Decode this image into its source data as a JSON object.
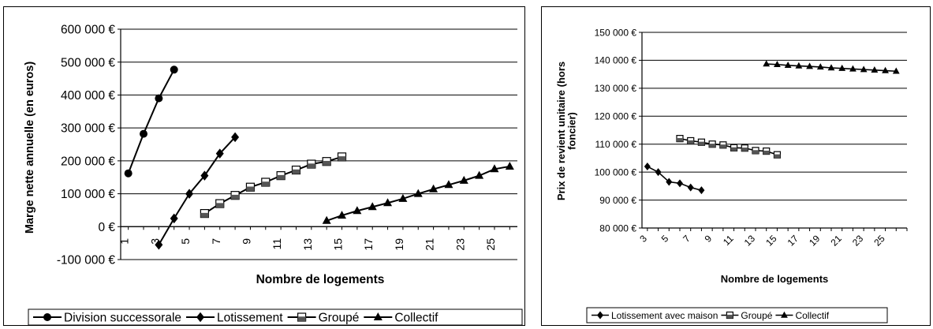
{
  "chart_data": [
    {
      "type": "line",
      "title": "",
      "xlabel": "Nombre de logements",
      "ylabel": "Marge nette annuelle (en euros)",
      "xlim": [
        0.5,
        26.5
      ],
      "ylim": [
        -100000,
        600000
      ],
      "x_ticks": [
        "1",
        "3",
        "5",
        "7",
        "9",
        "11",
        "13",
        "15",
        "17",
        "19",
        "21",
        "23",
        "25"
      ],
      "y_ticks": [
        "-100 000 €",
        "0 €",
        "100 000 €",
        "200 000 €",
        "300 000 €",
        "400 000 €",
        "500 000 €",
        "600 000 €"
      ],
      "y_tick_values": [
        -100000,
        0,
        100000,
        200000,
        300000,
        400000,
        500000,
        600000
      ],
      "gridlines": "horizontal",
      "legend_position": "bottom",
      "series": [
        {
          "name": "Division successorale",
          "marker": "circle",
          "x": [
            1,
            2,
            3,
            4
          ],
          "y": [
            162000,
            282000,
            390000,
            477000
          ]
        },
        {
          "name": "Lotissement",
          "marker": "diamond",
          "x": [
            3,
            4,
            5,
            6,
            7,
            8
          ],
          "y": [
            -55000,
            25000,
            100000,
            155000,
            222000,
            272000
          ]
        },
        {
          "name": "Groupé",
          "marker": "square",
          "x": [
            6,
            7,
            8,
            9,
            10,
            11,
            12,
            13,
            14,
            15
          ],
          "y": [
            40000,
            70000,
            95000,
            120000,
            135000,
            155000,
            172000,
            190000,
            198000,
            212000
          ]
        },
        {
          "name": "Collectif",
          "marker": "triangle",
          "x": [
            14,
            15,
            16,
            17,
            18,
            19,
            20,
            21,
            22,
            23,
            24,
            25,
            26
          ],
          "y": [
            18000,
            34000,
            48000,
            60000,
            72000,
            85000,
            100000,
            114000,
            127000,
            140000,
            155000,
            175000,
            183000
          ]
        }
      ]
    },
    {
      "type": "line",
      "title": "",
      "xlabel": "Nombre de logements",
      "ylabel": "Prix de revient unitaire (hors foncier)",
      "xlim": [
        2.5,
        27
      ],
      "ylim": [
        80000,
        150000
      ],
      "x_ticks": [
        "3",
        "5",
        "7",
        "9",
        "11",
        "13",
        "15",
        "17",
        "19",
        "21",
        "23",
        "25"
      ],
      "y_ticks": [
        "80 000 €",
        "90 000 €",
        "100 000 €",
        "110 000 €",
        "120 000 €",
        "130 000 €",
        "140 000 €",
        "150 000 €"
      ],
      "y_tick_values": [
        80000,
        90000,
        100000,
        110000,
        120000,
        130000,
        140000,
        150000
      ],
      "gridlines": "horizontal",
      "legend_position": "bottom",
      "series": [
        {
          "name": "Lotissement avec maison",
          "marker": "diamond",
          "x": [
            3,
            4,
            5,
            6,
            7,
            8
          ],
          "y": [
            102000,
            100000,
            96500,
            96000,
            94500,
            93500
          ]
        },
        {
          "name": "Groupé",
          "marker": "square",
          "x": [
            6,
            7,
            8,
            9,
            10,
            11,
            12,
            13,
            14,
            15
          ],
          "y": [
            112000,
            111200,
            110700,
            110000,
            109700,
            108700,
            108600,
            107700,
            107500,
            106200
          ]
        },
        {
          "name": "Collectif",
          "marker": "triangle",
          "x": [
            14,
            15,
            16,
            17,
            18,
            19,
            20,
            21,
            22,
            23,
            24,
            25,
            26
          ],
          "y": [
            138700,
            138500,
            138200,
            138000,
            137800,
            137600,
            137300,
            137100,
            136900,
            136700,
            136500,
            136300,
            136100
          ]
        }
      ]
    }
  ]
}
